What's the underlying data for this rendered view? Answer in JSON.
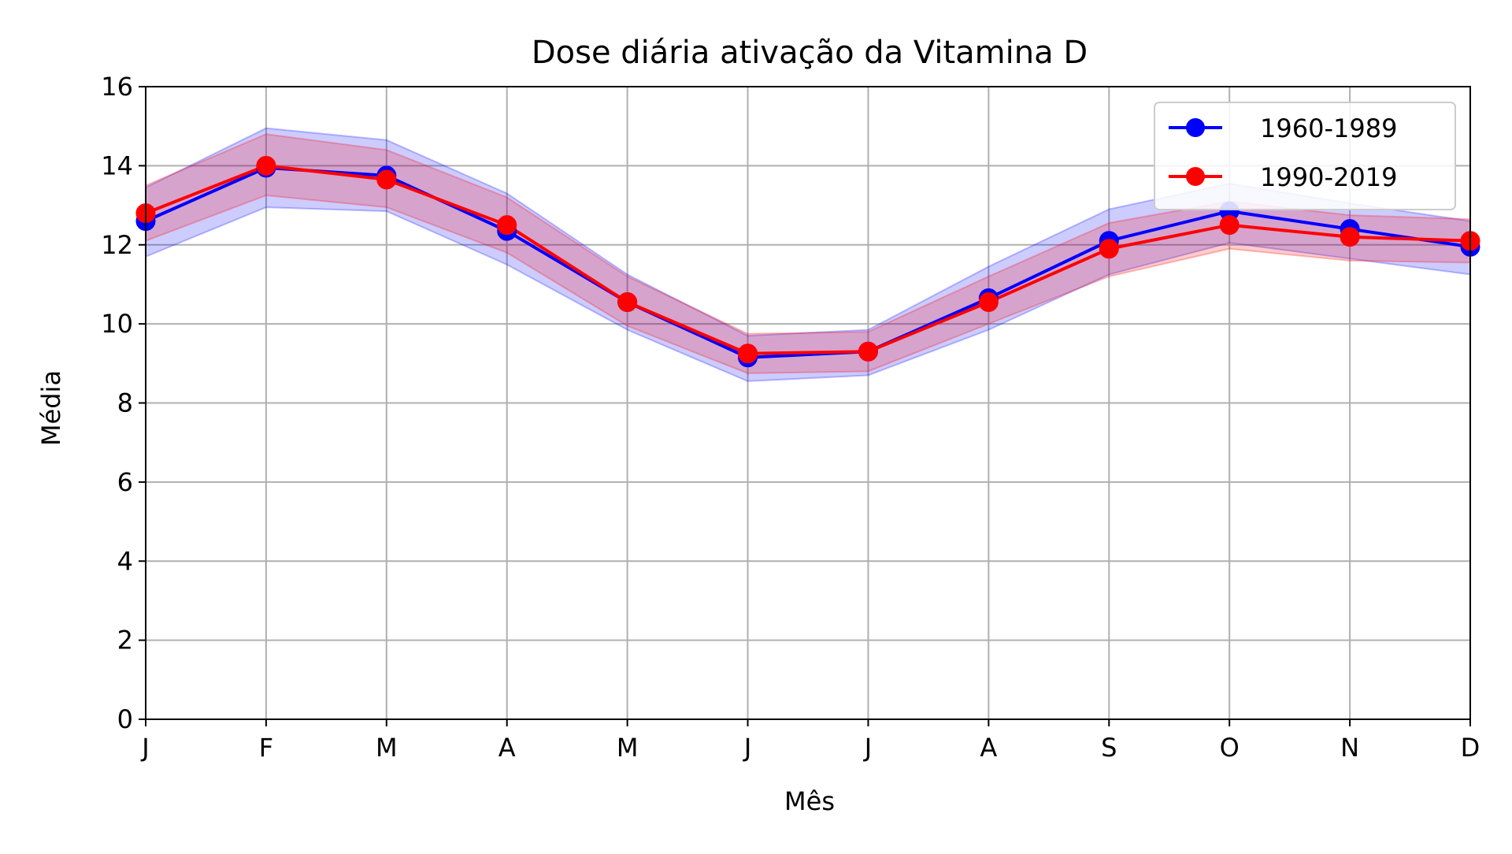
{
  "chart_data": {
    "type": "line",
    "title": "Dose diária ativação da Vitamina D",
    "xlabel": "Mês",
    "ylabel": "Média",
    "categories": [
      "J",
      "F",
      "M",
      "A",
      "M",
      "J",
      "J",
      "A",
      "S",
      "O",
      "N",
      "D"
    ],
    "ylim": [
      0,
      16
    ],
    "yticks": [
      0,
      2,
      4,
      6,
      8,
      10,
      12,
      14,
      16
    ],
    "grid": true,
    "legend_position": "top-right",
    "series": [
      {
        "name": "1960-1989",
        "color": "#0000ff",
        "values": [
          12.6,
          13.95,
          13.75,
          12.35,
          10.55,
          9.15,
          9.3,
          10.65,
          12.1,
          12.85,
          12.4,
          11.95
        ],
        "band_lower": [
          11.7,
          12.95,
          12.85,
          11.5,
          9.85,
          8.55,
          8.7,
          9.85,
          11.25,
          12.05,
          11.65,
          11.25
        ],
        "band_upper": [
          13.45,
          14.95,
          14.65,
          13.3,
          11.25,
          9.7,
          9.85,
          11.45,
          12.9,
          13.55,
          13.05,
          12.6
        ]
      },
      {
        "name": "1990-2019",
        "color": "#ff0000",
        "values": [
          12.8,
          14.0,
          13.65,
          12.5,
          10.55,
          9.25,
          9.3,
          10.55,
          11.9,
          12.5,
          12.2,
          12.1
        ],
        "band_lower": [
          12.1,
          13.25,
          12.95,
          11.8,
          9.95,
          8.75,
          8.8,
          10.0,
          11.2,
          11.9,
          11.6,
          11.55
        ],
        "band_upper": [
          13.5,
          14.8,
          14.4,
          13.2,
          11.2,
          9.75,
          9.8,
          11.2,
          12.55,
          13.1,
          12.75,
          12.65
        ]
      }
    ]
  }
}
